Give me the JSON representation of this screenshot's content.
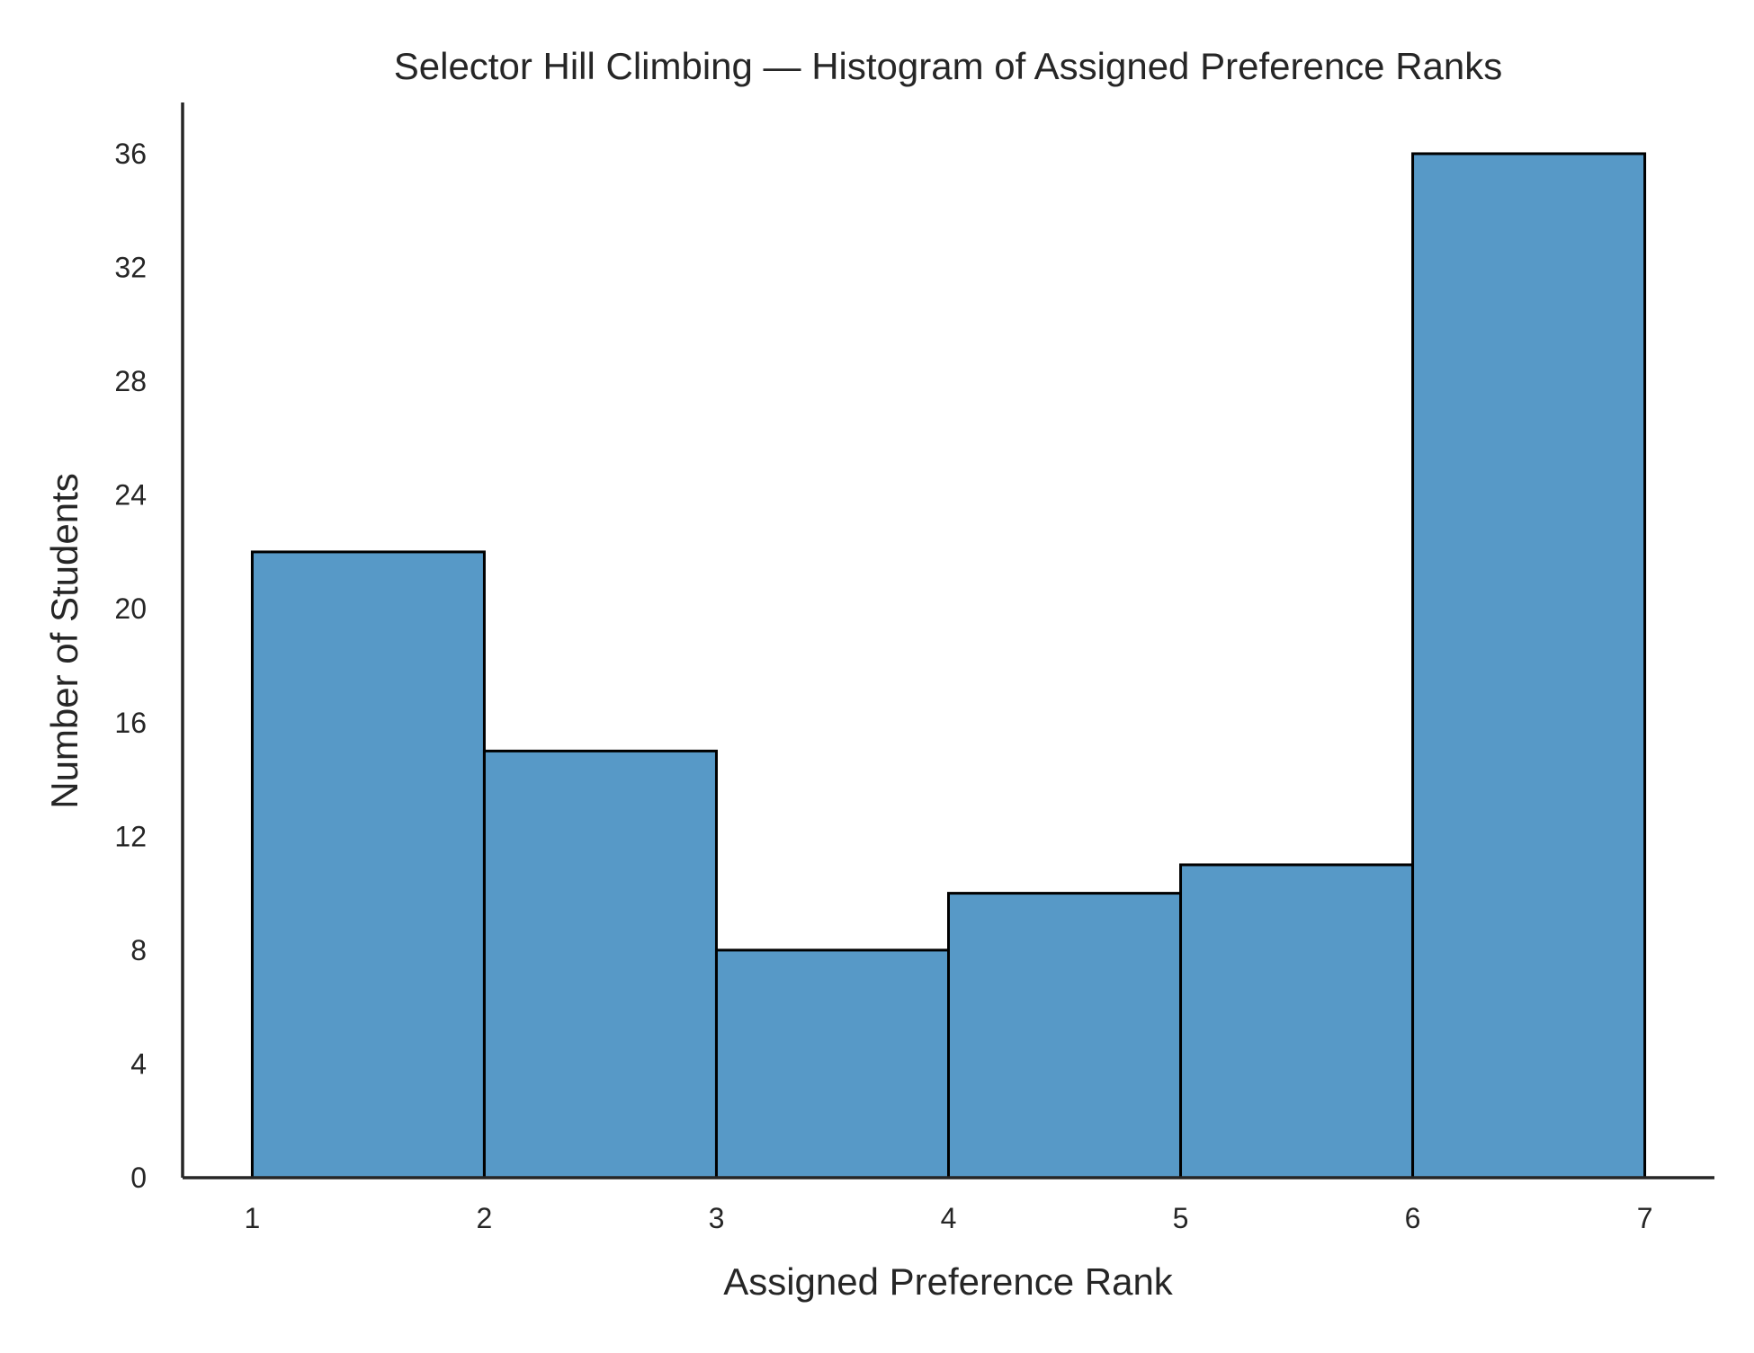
{
  "chart_data": {
    "type": "bar",
    "title": "Selector Hill Climbing — Histogram of Assigned Preference Ranks",
    "xlabel": "Assigned Preference Rank",
    "ylabel": "Number of Students",
    "bin_edges": [
      1,
      2,
      3,
      4,
      5,
      6,
      7
    ],
    "values": [
      22,
      15,
      8,
      10,
      11,
      36
    ],
    "xlim": [
      0.7,
      7.3
    ],
    "ylim": [
      0,
      37.8
    ],
    "xticks": [
      1,
      2,
      3,
      4,
      5,
      6,
      7
    ],
    "yticks": [
      0,
      4,
      8,
      12,
      16,
      20,
      24,
      28,
      32,
      36
    ],
    "grid": false,
    "bar_color": "#5799c7",
    "edge_color": "#000000",
    "axis_color": "#262626"
  }
}
